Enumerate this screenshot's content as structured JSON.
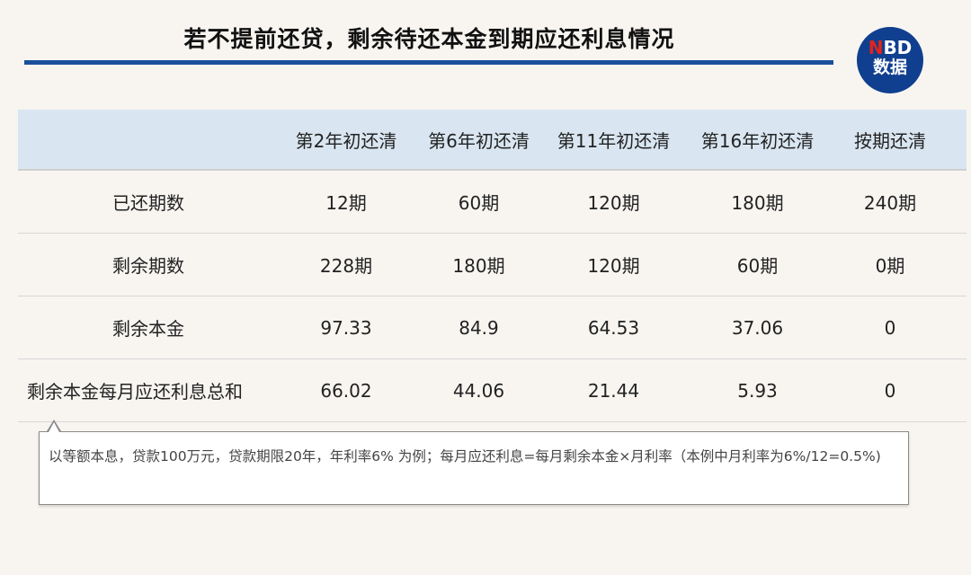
{
  "title": "若不提前还贷，剩余待还本金到期应还利息情况",
  "logo": {
    "n": "N",
    "bd": "BD",
    "line2": "数据",
    "color": "#103f8f"
  },
  "table": {
    "headers": [
      "",
      "第2年初还清",
      "第6年初还清",
      "第11年初还清",
      "第16年初还清",
      "按期还清"
    ],
    "rows": [
      [
        "已还期数",
        "12期",
        "60期",
        "120期",
        "180期",
        "240期"
      ],
      [
        "剩余期数",
        "228期",
        "180期",
        "120期",
        "60期",
        "0期"
      ],
      [
        "剩余本金",
        "97.33",
        "84.9",
        "64.53",
        "37.06",
        "0"
      ],
      [
        "剩余本金每月应还利息总和",
        "66.02",
        "44.06",
        "21.44",
        "5.93",
        "0"
      ]
    ]
  },
  "note": "以等额本息，贷款100万元，贷款期限20年，年利率6% 为例；每月应还利息=每月剩余本金×月利率（本例中月利率为6%/12=0.5%)"
}
